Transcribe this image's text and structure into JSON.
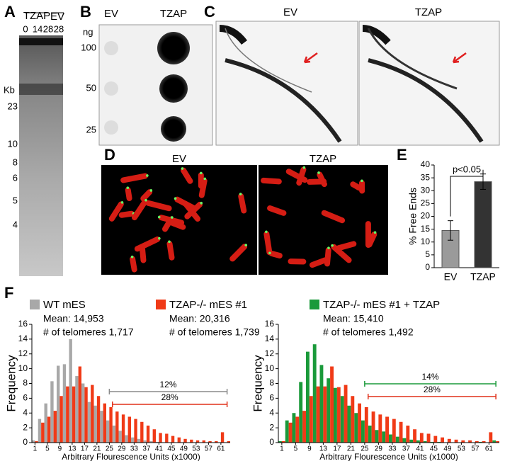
{
  "panel_letters": [
    "A",
    "B",
    "C",
    "D",
    "E",
    "F"
  ],
  "gel_a": {
    "lane_groups": [
      "TZAP",
      "EV"
    ],
    "lanes": [
      "0",
      "14",
      "28",
      "28"
    ],
    "unit": "Kb",
    "markers": [
      "23",
      "10",
      "8",
      "6",
      "5",
      "4"
    ]
  },
  "dot_blot_b": {
    "columns": [
      "EV",
      "TZAP"
    ],
    "unit": "ng",
    "rows": [
      "100",
      "50",
      "25"
    ]
  },
  "gel_c": {
    "titles": [
      "EV",
      "TZAP"
    ]
  },
  "micro_d": {
    "titles": [
      "EV",
      "TZAP"
    ]
  },
  "chart_data": [
    {
      "type": "bar",
      "categories": [
        "EV",
        "TZAP"
      ],
      "values": [
        14.5,
        33.5
      ],
      "errors": [
        3.8,
        3
      ],
      "colors": [
        "#9a9a9a",
        "#333333"
      ],
      "ylabel": "% Free Ends",
      "annotation": "p<0.05",
      "ylim": [
        0,
        40
      ],
      "yticks": [
        0,
        5,
        10,
        15,
        20,
        25,
        30,
        35,
        40
      ]
    },
    {
      "type": "histogram",
      "ylabel": "Frequency",
      "xlabel": "Arbitrary Flourescence Units (x1000)",
      "bins": [
        0,
        2,
        4,
        6,
        8,
        10,
        12,
        14,
        16,
        18,
        20,
        22,
        24,
        26,
        28,
        30,
        32,
        34,
        36,
        38,
        40,
        42,
        44,
        46,
        48,
        50,
        52,
        54,
        56,
        58,
        60,
        62,
        64
      ],
      "xlim": [
        0,
        64
      ],
      "xticks": [
        1,
        5,
        9,
        13,
        17,
        21,
        25,
        29,
        33,
        37,
        41,
        45,
        49,
        53,
        57,
        61
      ],
      "ylim": [
        0,
        16
      ],
      "yticks": [
        0,
        2,
        4,
        6,
        8,
        10,
        12,
        14,
        16
      ],
      "series": [
        {
          "name": "WT mES",
          "mean_label": "Mean: 14,953",
          "count_label": "# of telomeres 1,717",
          "color": "#a8a8a8",
          "values": [
            0.3,
            3.2,
            5.3,
            8.3,
            10.4,
            10.6,
            14,
            9,
            8,
            5.5,
            5,
            4.3,
            3,
            2.3,
            1.6,
            1,
            0.7,
            0.5,
            0.3,
            0.2,
            0.1,
            0,
            0,
            0,
            0,
            0,
            0,
            0,
            0,
            0,
            0,
            0
          ]
        },
        {
          "name": "TZAP-/- mES #1",
          "mean_label": "Mean:  20,316",
          "count_label": "# of telomeres 1,739",
          "color": "#f03a17",
          "values": [
            0.2,
            2.7,
            3.5,
            4.3,
            6.3,
            7.6,
            7.6,
            10.3,
            7.5,
            7.8,
            6.3,
            5.3,
            4.8,
            4.2,
            3.8,
            3.5,
            3.2,
            2.8,
            2.3,
            1.8,
            1.3,
            1.2,
            0.9,
            0.7,
            0.5,
            0.4,
            0.3,
            0.3,
            0.2,
            0.2,
            1.4,
            0.2
          ]
        }
      ],
      "ranges": [
        {
          "label": "12%",
          "color": "#8a8a8a",
          "from": 25,
          "to": 63
        },
        {
          "label": "28%",
          "color": "#e0301a",
          "from": 26,
          "to": 63
        }
      ]
    },
    {
      "type": "histogram",
      "ylabel": "Frequency",
      "xlabel": "Arbitrary Flourescence Units (x1000)",
      "bins": [
        0,
        2,
        4,
        6,
        8,
        10,
        12,
        14,
        16,
        18,
        20,
        22,
        24,
        26,
        28,
        30,
        32,
        34,
        36,
        38,
        40,
        42,
        44,
        46,
        48,
        50,
        52,
        54,
        56,
        58,
        60,
        62,
        64
      ],
      "xlim": [
        0,
        64
      ],
      "xticks": [
        1,
        5,
        9,
        13,
        17,
        21,
        25,
        29,
        33,
        37,
        41,
        45,
        49,
        53,
        57,
        61
      ],
      "ylim": [
        0,
        16
      ],
      "yticks": [
        0,
        2,
        4,
        6,
        8,
        10,
        12,
        14,
        16
      ],
      "series": [
        {
          "name": "TZAP-/- mES #1 + TZAP",
          "mean_label": "Mean: 15,410",
          "count_label": "# of telomeres 1,492",
          "color": "#1a9a3a",
          "values": [
            0.2,
            3,
            4,
            8.2,
            12.3,
            13.3,
            10.5,
            8.7,
            7.4,
            6.3,
            5,
            4,
            3,
            2.3,
            1.7,
            1.5,
            1.1,
            0.8,
            0.6,
            0.4,
            0.3,
            0.2,
            0.1,
            0.1,
            0,
            0,
            0,
            0,
            0,
            0.1,
            0,
            0.3
          ]
        },
        {
          "color": "#f03a17",
          "values": [
            0.2,
            2.7,
            3.5,
            4.3,
            6.3,
            7.6,
            7.6,
            10.3,
            7.5,
            7.8,
            6.3,
            5.3,
            4.8,
            4.2,
            3.8,
            3.5,
            3.2,
            2.8,
            2.3,
            1.8,
            1.3,
            1.2,
            0.9,
            0.7,
            0.5,
            0.4,
            0.3,
            0.3,
            0.2,
            0.2,
            1.4,
            0.2
          ]
        }
      ],
      "ranges": [
        {
          "label": "14%",
          "color": "#1a9a3a",
          "from": 25,
          "to": 63
        },
        {
          "label": "28%",
          "color": "#e0301a",
          "from": 26,
          "to": 63
        }
      ]
    }
  ]
}
